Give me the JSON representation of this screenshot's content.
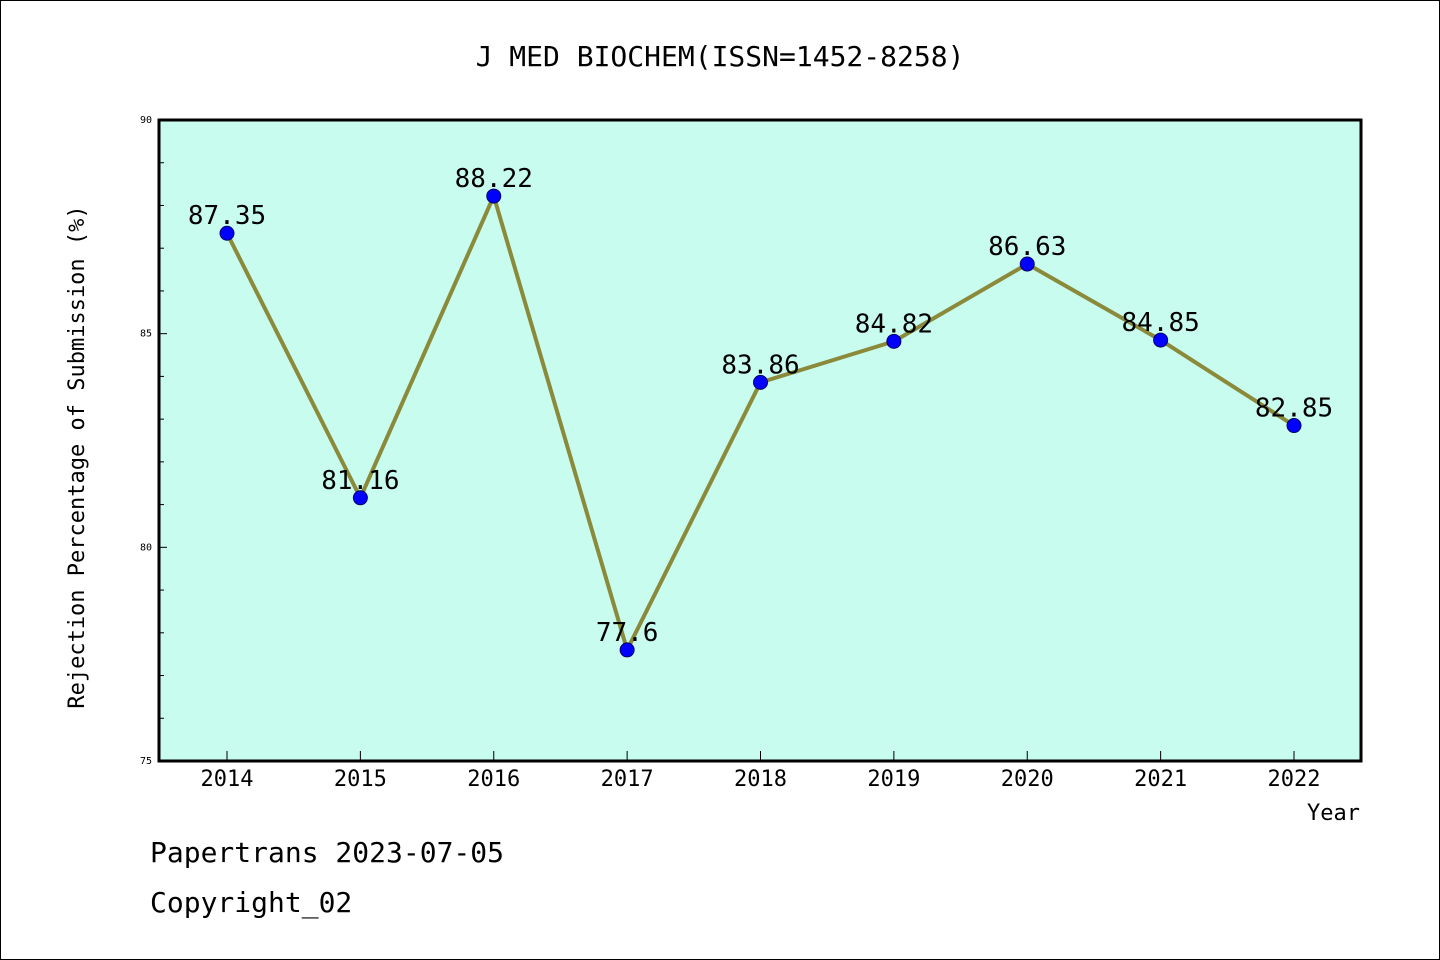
{
  "chart_data": {
    "type": "line",
    "title": "J MED BIOCHEM(ISSN=1452-8258)",
    "xlabel": "Year",
    "ylabel": "Rejection Percentage of Submission (%)",
    "categories": [
      "2014",
      "2015",
      "2016",
      "2017",
      "2018",
      "2019",
      "2020",
      "2021",
      "2022"
    ],
    "values": [
      87.35,
      81.16,
      88.22,
      77.6,
      83.86,
      84.82,
      86.63,
      84.85,
      82.85
    ],
    "value_labels": [
      "87.35",
      "81.16",
      "88.22",
      "77.6",
      "83.86",
      "84.82",
      "86.63",
      "84.85",
      "82.85"
    ],
    "ylim": [
      75,
      90
    ],
    "yticks": [
      75,
      80,
      85,
      90
    ],
    "ytick_labels": [
      "75",
      "80",
      "85",
      "90"
    ],
    "grid": false,
    "colors": {
      "plot_background": "#c8fcee",
      "line": "#8a8a3a",
      "marker": "#0000ff"
    }
  },
  "footer": {
    "credit": "Papertrans 2023-07-05",
    "copyright": "Copyright_02"
  }
}
